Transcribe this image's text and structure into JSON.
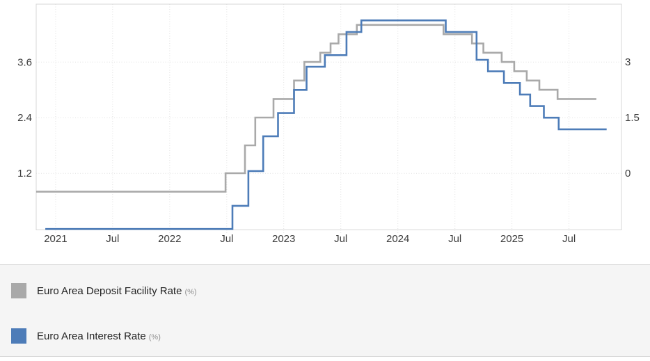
{
  "chart_data": {
    "type": "line",
    "subtype": "step",
    "title": "",
    "grid": true,
    "legend_position": "bottom",
    "x_range": [
      2020.83,
      2025.96
    ],
    "x_axis": {
      "ticks": [
        {
          "label": "2021",
          "year": 2021.0
        },
        {
          "label": "Jul",
          "year": 2021.5
        },
        {
          "label": "2022",
          "year": 2022.0
        },
        {
          "label": "Jul",
          "year": 2022.5
        },
        {
          "label": "2023",
          "year": 2023.0
        },
        {
          "label": "Jul",
          "year": 2023.5
        },
        {
          "label": "2024",
          "year": 2024.0
        },
        {
          "label": "Jul",
          "year": 2024.5
        },
        {
          "label": "2025",
          "year": 2025.0
        },
        {
          "label": "Jul",
          "year": 2025.5
        }
      ]
    },
    "left_axis": {
      "tick_labels": [
        "3.6",
        "2.4",
        "1.2"
      ],
      "tick_values": [
        3.6,
        2.4,
        1.2
      ],
      "range": [
        -0.02,
        4.85
      ]
    },
    "right_axis": {
      "tick_labels": [
        "3",
        "1.5",
        "0"
      ],
      "tick_values": [
        3.0,
        1.5,
        0.0
      ],
      "range": [
        -1.53,
        4.56
      ]
    },
    "series": [
      {
        "name": "Euro Area Deposit Facility Rate",
        "unit": "(%)",
        "color": "#a9a9a9",
        "axis": "right",
        "steps": [
          [
            2020.83,
            -0.5
          ],
          [
            2022.49,
            0.0
          ],
          [
            2022.66,
            0.75
          ],
          [
            2022.75,
            1.5
          ],
          [
            2022.91,
            2.0
          ],
          [
            2023.09,
            2.5
          ],
          [
            2023.18,
            3.0
          ],
          [
            2023.32,
            3.25
          ],
          [
            2023.41,
            3.5
          ],
          [
            2023.48,
            3.75
          ],
          [
            2023.64,
            4.0
          ],
          [
            2024.4,
            3.75
          ],
          [
            2024.65,
            3.5
          ],
          [
            2024.75,
            3.25
          ],
          [
            2024.91,
            3.0
          ],
          [
            2025.02,
            2.75
          ],
          [
            2025.13,
            2.5
          ],
          [
            2025.24,
            2.25
          ],
          [
            2025.4,
            2.0
          ]
        ],
        "end": 2025.74
      },
      {
        "name": "Euro Area Interest Rate",
        "unit": "(%)",
        "color": "#4d7cb8",
        "axis": "left",
        "steps": [
          [
            2020.91,
            0.0
          ],
          [
            2022.55,
            0.5
          ],
          [
            2022.69,
            1.25
          ],
          [
            2022.82,
            2.0
          ],
          [
            2022.95,
            2.5
          ],
          [
            2023.09,
            3.0
          ],
          [
            2023.2,
            3.5
          ],
          [
            2023.36,
            3.75
          ],
          [
            2023.55,
            4.25
          ],
          [
            2023.68,
            4.5
          ],
          [
            2024.42,
            4.25
          ],
          [
            2024.69,
            3.65
          ],
          [
            2024.79,
            3.4
          ],
          [
            2024.93,
            3.15
          ],
          [
            2025.07,
            2.9
          ],
          [
            2025.16,
            2.65
          ],
          [
            2025.28,
            2.4
          ],
          [
            2025.41,
            2.15
          ]
        ],
        "end": 2025.83
      }
    ]
  },
  "style_colors": {
    "grid": "#e2e2e2",
    "plot_border": "#d7d7d7",
    "axis_text": "#3c3c3c",
    "legend_bg": "#f5f5f5"
  }
}
